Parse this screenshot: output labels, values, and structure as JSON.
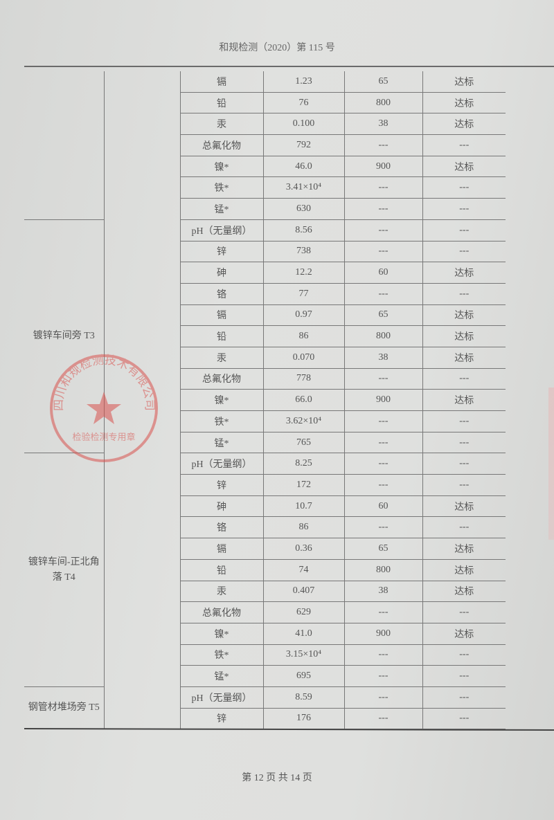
{
  "header": {
    "doc_number": "和规检测（2020）第 115 号"
  },
  "footer": {
    "page_info": "第 12 页 共 14 页"
  },
  "stamp": {
    "text_outer": "四川和规检测技术有限公司",
    "text_inner": "检验检测专用章",
    "color": "#d9534f"
  },
  "table": {
    "groups": [
      {
        "location": "",
        "rows": [
          [
            "镉",
            "1.23",
            "65",
            "达标"
          ],
          [
            "铅",
            "76",
            "800",
            "达标"
          ],
          [
            "汞",
            "0.100",
            "38",
            "达标"
          ],
          [
            "总氟化物",
            "792",
            "---",
            "---"
          ],
          [
            "镍*",
            "46.0",
            "900",
            "达标"
          ],
          [
            "铁*",
            "3.41×10⁴",
            "---",
            "---"
          ],
          [
            "锰*",
            "630",
            "---",
            "---"
          ]
        ]
      },
      {
        "location": "镀锌车间旁 T3",
        "rows": [
          [
            "pH（无量纲）",
            "8.56",
            "---",
            "---"
          ],
          [
            "锌",
            "738",
            "---",
            "---"
          ],
          [
            "砷",
            "12.2",
            "60",
            "达标"
          ],
          [
            "铬",
            "77",
            "---",
            "---"
          ],
          [
            "镉",
            "0.97",
            "65",
            "达标"
          ],
          [
            "铅",
            "86",
            "800",
            "达标"
          ],
          [
            "汞",
            "0.070",
            "38",
            "达标"
          ],
          [
            "总氟化物",
            "778",
            "---",
            "---"
          ],
          [
            "镍*",
            "66.0",
            "900",
            "达标"
          ],
          [
            "铁*",
            "3.62×10⁴",
            "---",
            "---"
          ],
          [
            "锰*",
            "765",
            "---",
            "---"
          ]
        ]
      },
      {
        "location": "镀锌车间-正北角落 T4",
        "rows": [
          [
            "pH（无量纲）",
            "8.25",
            "---",
            "---"
          ],
          [
            "锌",
            "172",
            "---",
            "---"
          ],
          [
            "砷",
            "10.7",
            "60",
            "达标"
          ],
          [
            "铬",
            "86",
            "---",
            "---"
          ],
          [
            "镉",
            "0.36",
            "65",
            "达标"
          ],
          [
            "铅",
            "74",
            "800",
            "达标"
          ],
          [
            "汞",
            "0.407",
            "38",
            "达标"
          ],
          [
            "总氟化物",
            "629",
            "---",
            "---"
          ],
          [
            "镍*",
            "41.0",
            "900",
            "达标"
          ],
          [
            "铁*",
            "3.15×10⁴",
            "---",
            "---"
          ],
          [
            "锰*",
            "695",
            "---",
            "---"
          ]
        ]
      },
      {
        "location": "钢管材堆场旁 T5",
        "rows": [
          [
            "pH（无量纲）",
            "8.59",
            "---",
            "---"
          ],
          [
            "锌",
            "176",
            "---",
            "---"
          ]
        ]
      }
    ]
  }
}
